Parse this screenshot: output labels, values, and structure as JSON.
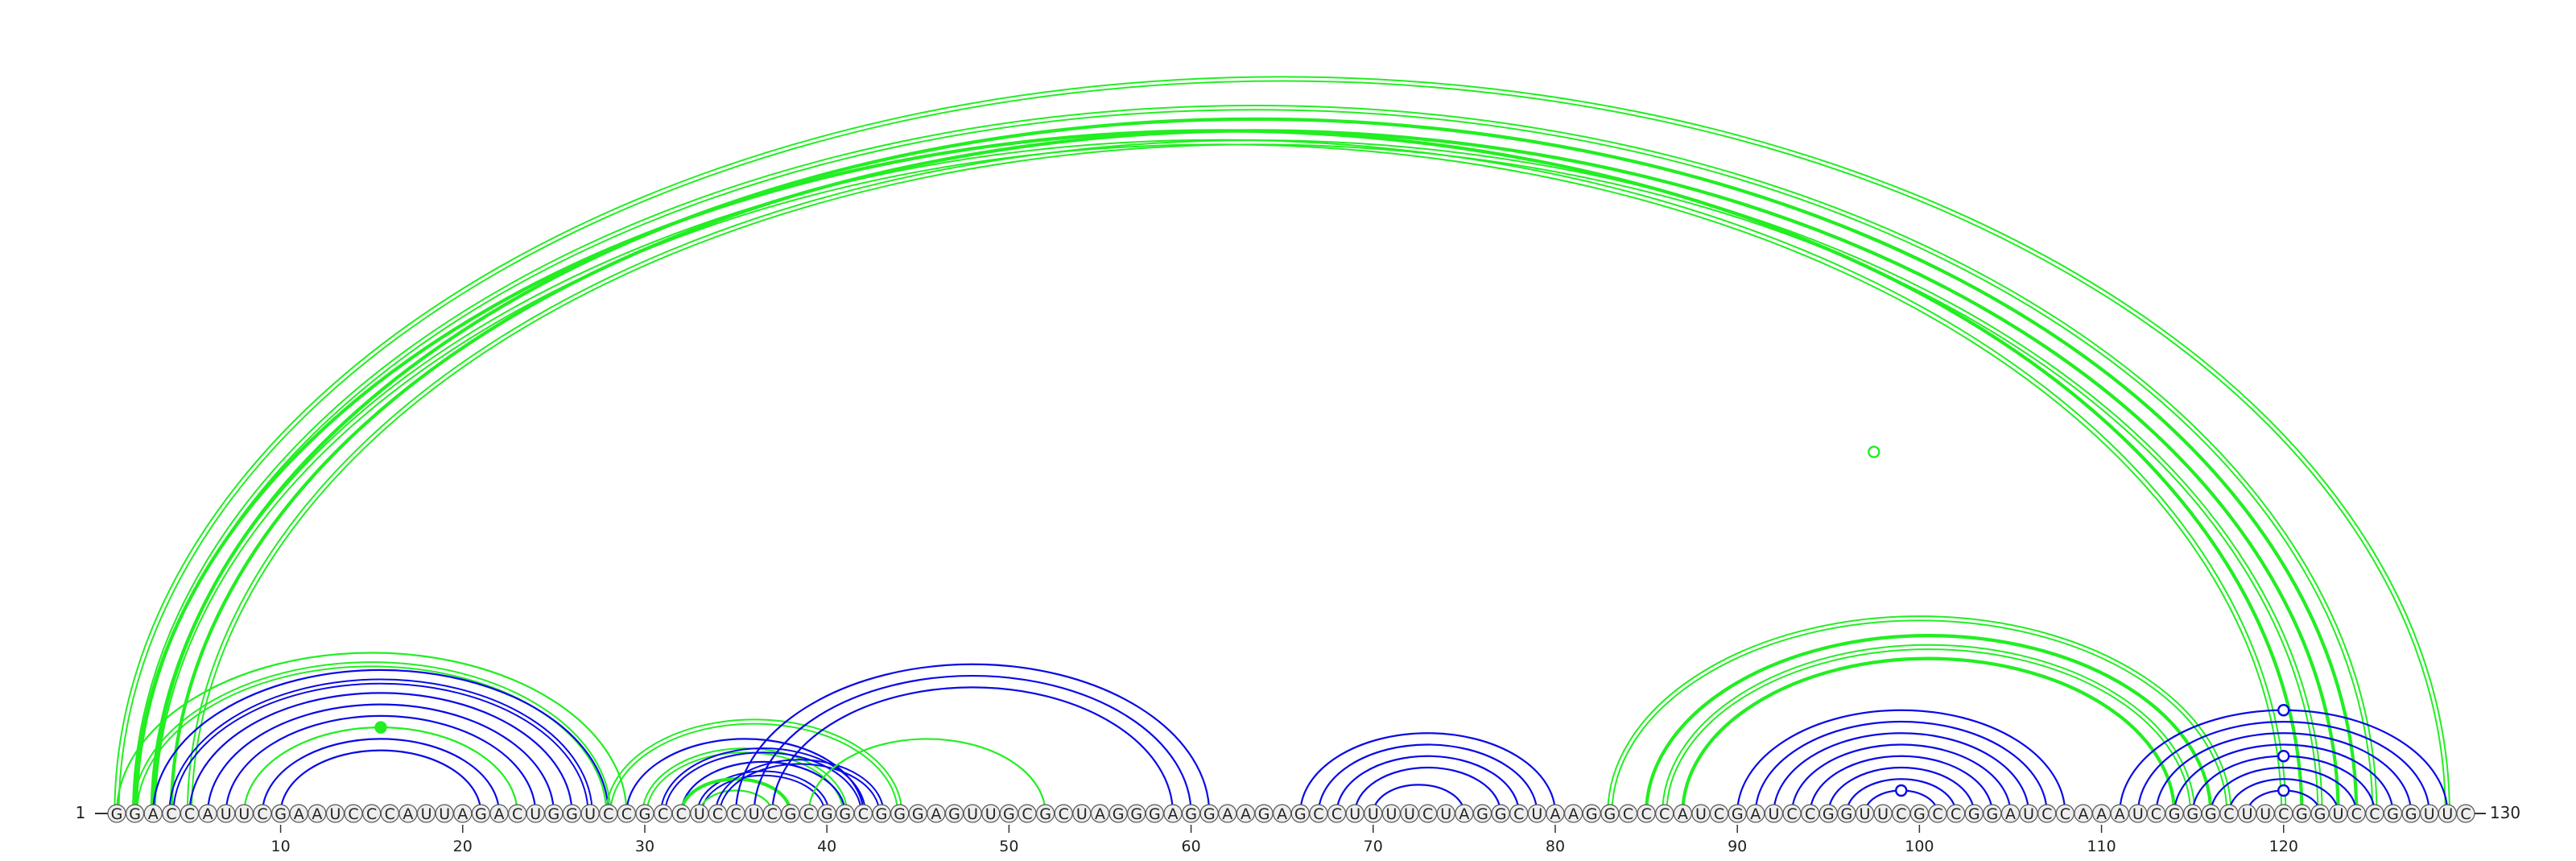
{
  "sequence": "GGACCAUUCGAAUCCCAUUAGACUGGUCCGCCUCCUCGCGGCGGGAGUUGCGCUAGGGAGGAAGAGCCUUUUCUAGGCUAAGGCCCAUCGAUCCGGUUCGCCGGAUCCAAAUCGGGCUUCGGUCCGGUUC",
  "start_label": "1",
  "end_label": "130",
  "axis_ticks": [
    "10",
    "20",
    "30",
    "40",
    "50",
    "60",
    "70",
    "80",
    "90",
    "100",
    "110",
    "120"
  ],
  "colors": {
    "blue": "#0a0ae6",
    "green": "#22ee22",
    "base_fill": "#eeeeee",
    "text": "#222222"
  },
  "arcs": [
    {
      "i": 1,
      "j": 129,
      "c": "green",
      "w": "double"
    },
    {
      "i": 2,
      "j": 125,
      "c": "green",
      "w": "double"
    },
    {
      "i": 2,
      "j": 121,
      "c": "green",
      "w": "heavy"
    },
    {
      "i": 3,
      "j": 124,
      "c": "green",
      "w": "heavy"
    },
    {
      "i": 3,
      "j": 120,
      "c": "green",
      "w": "double"
    },
    {
      "i": 4,
      "j": 123,
      "c": "green",
      "w": "heavy"
    },
    {
      "i": 5,
      "j": 122,
      "c": "green",
      "w": "double"
    },
    {
      "i": 2,
      "j": 28,
      "c": "green",
      "w": "double"
    },
    {
      "i": 1,
      "j": 29,
      "c": "green",
      "w": "single"
    },
    {
      "i": 3,
      "j": 28,
      "c": "blue",
      "w": "single"
    },
    {
      "i": 4,
      "j": 27,
      "c": "blue",
      "w": "double"
    },
    {
      "i": 5,
      "j": 26,
      "c": "blue",
      "w": "single"
    },
    {
      "i": 6,
      "j": 25,
      "c": "blue",
      "w": "single"
    },
    {
      "i": 7,
      "j": 24,
      "c": "blue",
      "w": "single"
    },
    {
      "i": 8,
      "j": 23,
      "c": "green",
      "w": "single"
    },
    {
      "i": 9,
      "j": 22,
      "c": "blue",
      "w": "single"
    },
    {
      "i": 10,
      "j": 21,
      "c": "blue",
      "w": "single"
    },
    {
      "i": 28,
      "j": 44,
      "c": "green",
      "w": "double"
    },
    {
      "i": 29,
      "j": 42,
      "c": "blue",
      "w": "single"
    },
    {
      "i": 30,
      "j": 41,
      "c": "green",
      "w": "double"
    },
    {
      "i": 31,
      "j": 42,
      "c": "blue",
      "w": "double"
    },
    {
      "i": 32,
      "j": 41,
      "c": "blue",
      "w": "single"
    },
    {
      "i": 33,
      "j": 40,
      "c": "blue",
      "w": "double"
    },
    {
      "i": 32,
      "j": 38,
      "c": "green",
      "w": "heavy"
    },
    {
      "i": 33,
      "j": 37,
      "c": "green",
      "w": "single"
    },
    {
      "i": 34,
      "j": 43,
      "c": "blue",
      "w": "double"
    },
    {
      "i": 35,
      "j": 61,
      "c": "blue",
      "w": "single"
    },
    {
      "i": 36,
      "j": 60,
      "c": "blue",
      "w": "single"
    },
    {
      "i": 37,
      "j": 59,
      "c": "blue",
      "w": "single"
    },
    {
      "i": 39,
      "j": 52,
      "c": "green",
      "w": "single"
    },
    {
      "i": 66,
      "j": 80,
      "c": "blue",
      "w": "single"
    },
    {
      "i": 67,
      "j": 79,
      "c": "blue",
      "w": "single"
    },
    {
      "i": 68,
      "j": 78,
      "c": "blue",
      "w": "single"
    },
    {
      "i": 69,
      "j": 77,
      "c": "blue",
      "w": "single"
    },
    {
      "i": 70,
      "j": 75,
      "c": "blue",
      "w": "single"
    },
    {
      "i": 83,
      "j": 117,
      "c": "green",
      "w": "double"
    },
    {
      "i": 85,
      "j": 116,
      "c": "green",
      "w": "heavy"
    },
    {
      "i": 86,
      "j": 115,
      "c": "green",
      "w": "double"
    },
    {
      "i": 87,
      "j": 114,
      "c": "green",
      "w": "heavy"
    },
    {
      "i": 90,
      "j": 108,
      "c": "blue",
      "w": "single"
    },
    {
      "i": 91,
      "j": 107,
      "c": "blue",
      "w": "single"
    },
    {
      "i": 92,
      "j": 106,
      "c": "blue",
      "w": "single"
    },
    {
      "i": 93,
      "j": 105,
      "c": "blue",
      "w": "single"
    },
    {
      "i": 94,
      "j": 104,
      "c": "blue",
      "w": "single"
    },
    {
      "i": 95,
      "j": 103,
      "c": "blue",
      "w": "single"
    },
    {
      "i": 96,
      "j": 102,
      "c": "blue",
      "w": "single"
    },
    {
      "i": 97,
      "j": 101,
      "c": "blue",
      "w": "single"
    },
    {
      "i": 111,
      "j": 129,
      "c": "blue",
      "w": "single"
    },
    {
      "i": 112,
      "j": 128,
      "c": "blue",
      "w": "single"
    },
    {
      "i": 113,
      "j": 127,
      "c": "blue",
      "w": "single"
    },
    {
      "i": 114,
      "j": 126,
      "c": "blue",
      "w": "single"
    },
    {
      "i": 115,
      "j": 125,
      "c": "blue",
      "w": "single"
    },
    {
      "i": 116,
      "j": 124,
      "c": "blue",
      "w": "single"
    },
    {
      "i": 117,
      "j": 123,
      "c": "blue",
      "w": "single"
    },
    {
      "i": 118,
      "j": 122,
      "c": "blue",
      "w": "single"
    }
  ],
  "dots": [
    {
      "i": 66,
      "j": 129,
      "c": "green",
      "filled": false
    },
    {
      "i": 8,
      "j": 23,
      "c": "green",
      "filled": true
    },
    {
      "i": 97,
      "j": 101,
      "c": "blue",
      "filled": false
    },
    {
      "i": 111,
      "j": 129,
      "c": "blue",
      "filled": false
    },
    {
      "i": 115,
      "j": 125,
      "c": "blue",
      "filled": false
    },
    {
      "i": 118,
      "j": 122,
      "c": "blue",
      "filled": false
    }
  ]
}
